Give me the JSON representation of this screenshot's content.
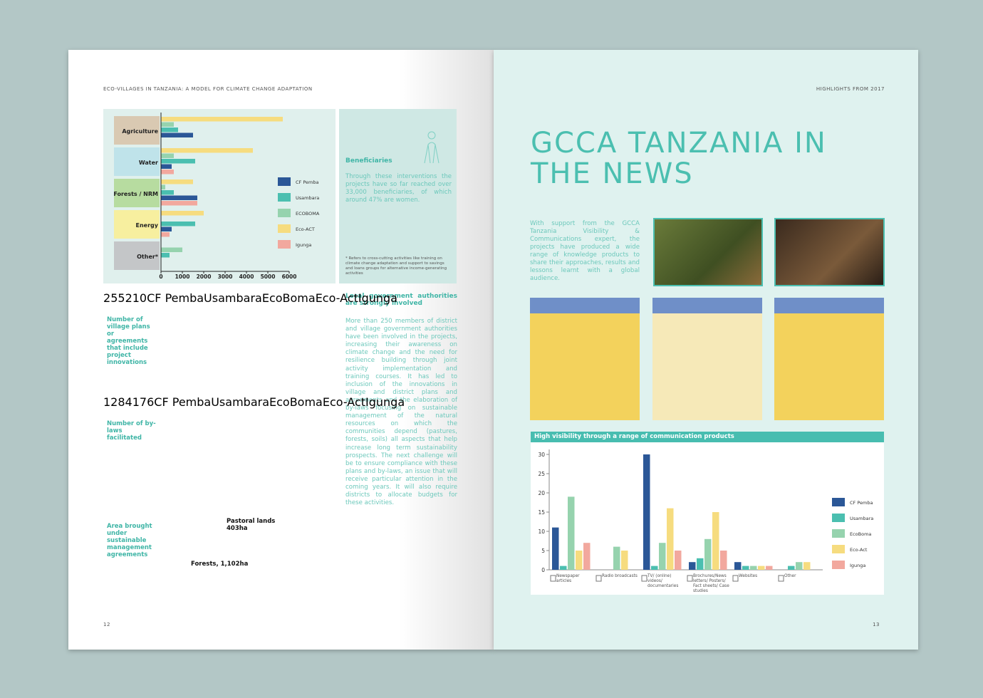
{
  "left_page": {
    "header": "ECO-VILLAGES IN TANZANIA: A MODEL FOR CLIMATE CHANGE ADAPTATION",
    "page_number": "12",
    "bar_chart": {
      "type": "bar",
      "orientation": "horizontal",
      "categories": [
        "Agriculture",
        "Water",
        "Forests / NRM",
        "Energy",
        "Other*"
      ],
      "series": [
        {
          "name": "CF Pemba",
          "color": "#2b5797",
          "values": [
            1500,
            500,
            1700,
            500,
            null
          ]
        },
        {
          "name": "Usambara",
          "color": "#4bbfb0",
          "values": [
            800,
            1600,
            600,
            1600,
            400
          ]
        },
        {
          "name": "ECOBOMA",
          "color": "#96d3ae",
          "values": [
            600,
            600,
            200,
            null,
            1000
          ]
        },
        {
          "name": "Eco-ACT",
          "color": "#f6dc7f",
          "values": [
            5700,
            4300,
            1500,
            2000,
            null
          ]
        },
        {
          "name": "Igunga",
          "color": "#f2a89e",
          "values": [
            null,
            600,
            1700,
            400,
            null
          ]
        }
      ],
      "xlim": [
        0,
        6000
      ],
      "xticks": [
        0,
        1000,
        2000,
        3000,
        4000,
        5000,
        6000
      ]
    },
    "beneficiaries": {
      "title": "Beneficiaries",
      "text": "Through these interventions the projects have so far reached over 33,000 beneficiaries, of which around 47% are women.",
      "footnote": "* Refers to cross-cutting activities like training on climate change adaptation and support to savings and loans groups for alternative income-generating activities"
    },
    "pie_charts": [
      {
        "type": "pie",
        "title": "Number of village plans or agreements that include project innovations",
        "categories": [
          "CF Pemba",
          "Usambara",
          "EcoBoma",
          "Eco-Act",
          "Igunga"
        ],
        "colors": [
          "#2b5797",
          "#4bbfb0",
          "#96d3ae",
          "#f6dc7f",
          "#f2a89e"
        ],
        "values": [
          2,
          5,
          5,
          2,
          10
        ]
      },
      {
        "type": "pie",
        "title": "Number of by-laws facilitated",
        "categories": [
          "CF Pemba",
          "Usambara",
          "EcoBoma",
          "Eco-Act",
          "Igunga"
        ],
        "colors": [
          "#2b5797",
          "#4bbfb0",
          "#96d3ae",
          "#f6dc7f",
          "#f2a89e"
        ],
        "values": [
          12,
          8,
          4,
          17,
          6
        ]
      },
      {
        "type": "pie",
        "title": "Area brought under sustainable management agreements",
        "colors": [
          "#f6dc7f",
          "#4bbfb0"
        ],
        "values": [
          403,
          1102
        ],
        "value_labels": [
          "Pastoral lands 403ha",
          "Forests, 1,102ha"
        ]
      }
    ],
    "text_block": {
      "title": "Local government authorities are strongly involved",
      "body": "More than 250 members of district and village government authorities have been involved in the projects, increasing their awareness on climate change and the need for resilience building through joint activity implementation and training courses. It has led to inclusion of the innovations in village and district plans and agreements and the elaboration of by-laws focusing on sustainable management of the natural resources on which the communities depend (pastures, forests, soils) all aspects that help increase long term sustainability prospects. The next challenge will be to ensure compliance with these plans and by-laws, an issue that will receive particular attention in the coming years. It will also require districts to allocate budgets for these activities."
    }
  },
  "right_page": {
    "header": "HIGHLIGHTS FROM 2017",
    "page_number": "13",
    "title": "GCCA TANZANIA IN THE NEWS",
    "intro": "With support from the GCCA Tanzania Visibility & Communications expert, the projects have produced a wide range of knowledge products to share their approaches, results and lessons learnt with a global audience.",
    "bar_chart": {
      "type": "bar",
      "title": "High visibility through a range of communication products",
      "categories": [
        "Newspaper articles",
        "Radio broadcasts",
        "TV/ (online) videos/ documentaries",
        "Brochures/News letters/ Posters/ Fact sheets/ Case studies",
        "Websites",
        "Other"
      ],
      "series": [
        {
          "name": "CF Pemba",
          "color": "#2b5797",
          "values": [
            11,
            null,
            30,
            2,
            2,
            null
          ]
        },
        {
          "name": "Usambara",
          "color": "#4bbfb0",
          "values": [
            1,
            null,
            1,
            3,
            1,
            1
          ]
        },
        {
          "name": "EcoBoma",
          "color": "#96d3ae",
          "values": [
            19,
            6,
            7,
            8,
            1,
            2
          ]
        },
        {
          "name": "Eco-Act",
          "color": "#f6dc7f",
          "values": [
            5,
            5,
            16,
            15,
            1,
            2
          ]
        },
        {
          "name": "Igunga",
          "color": "#f2a89e",
          "values": [
            7,
            null,
            5,
            5,
            1,
            null
          ]
        }
      ],
      "ylim": [
        0,
        30
      ],
      "yticks": [
        0,
        5,
        10,
        15,
        20,
        25,
        30
      ]
    }
  }
}
